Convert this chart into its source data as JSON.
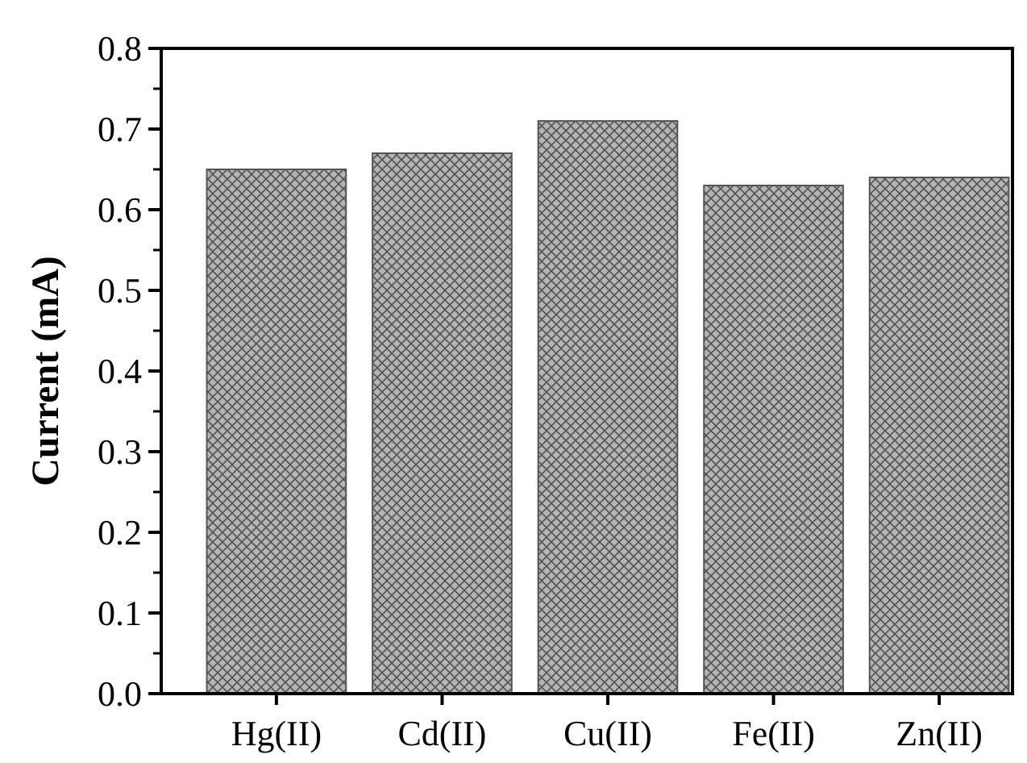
{
  "chart_data": {
    "type": "bar",
    "ylabel": "Current (mA)",
    "categories": [
      "Hg(II)",
      "Cd(II)",
      "Cu(II)",
      "Fe(II)",
      "Zn(II)"
    ],
    "series": [
      {
        "color": "#555555",
        "values": [
          0.65,
          0.67,
          0.71,
          0.63,
          0.64
        ]
      }
    ],
    "ylim": [
      0,
      0.8
    ],
    "yticks": [
      {
        "value": 0,
        "label": "0.0"
      },
      {
        "value": 0.1,
        "label": "0.1"
      },
      {
        "value": 0.2,
        "label": "0.2"
      },
      {
        "value": 0.3,
        "label": "0.3"
      },
      {
        "value": 0.4,
        "label": "0.4"
      },
      {
        "value": 0.5,
        "label": "0.5"
      },
      {
        "value": 0.6,
        "label": "0.6"
      },
      {
        "value": 0.7,
        "label": "0.7"
      },
      {
        "value": 0.8,
        "label": "0.8"
      }
    ],
    "grid": false
  }
}
